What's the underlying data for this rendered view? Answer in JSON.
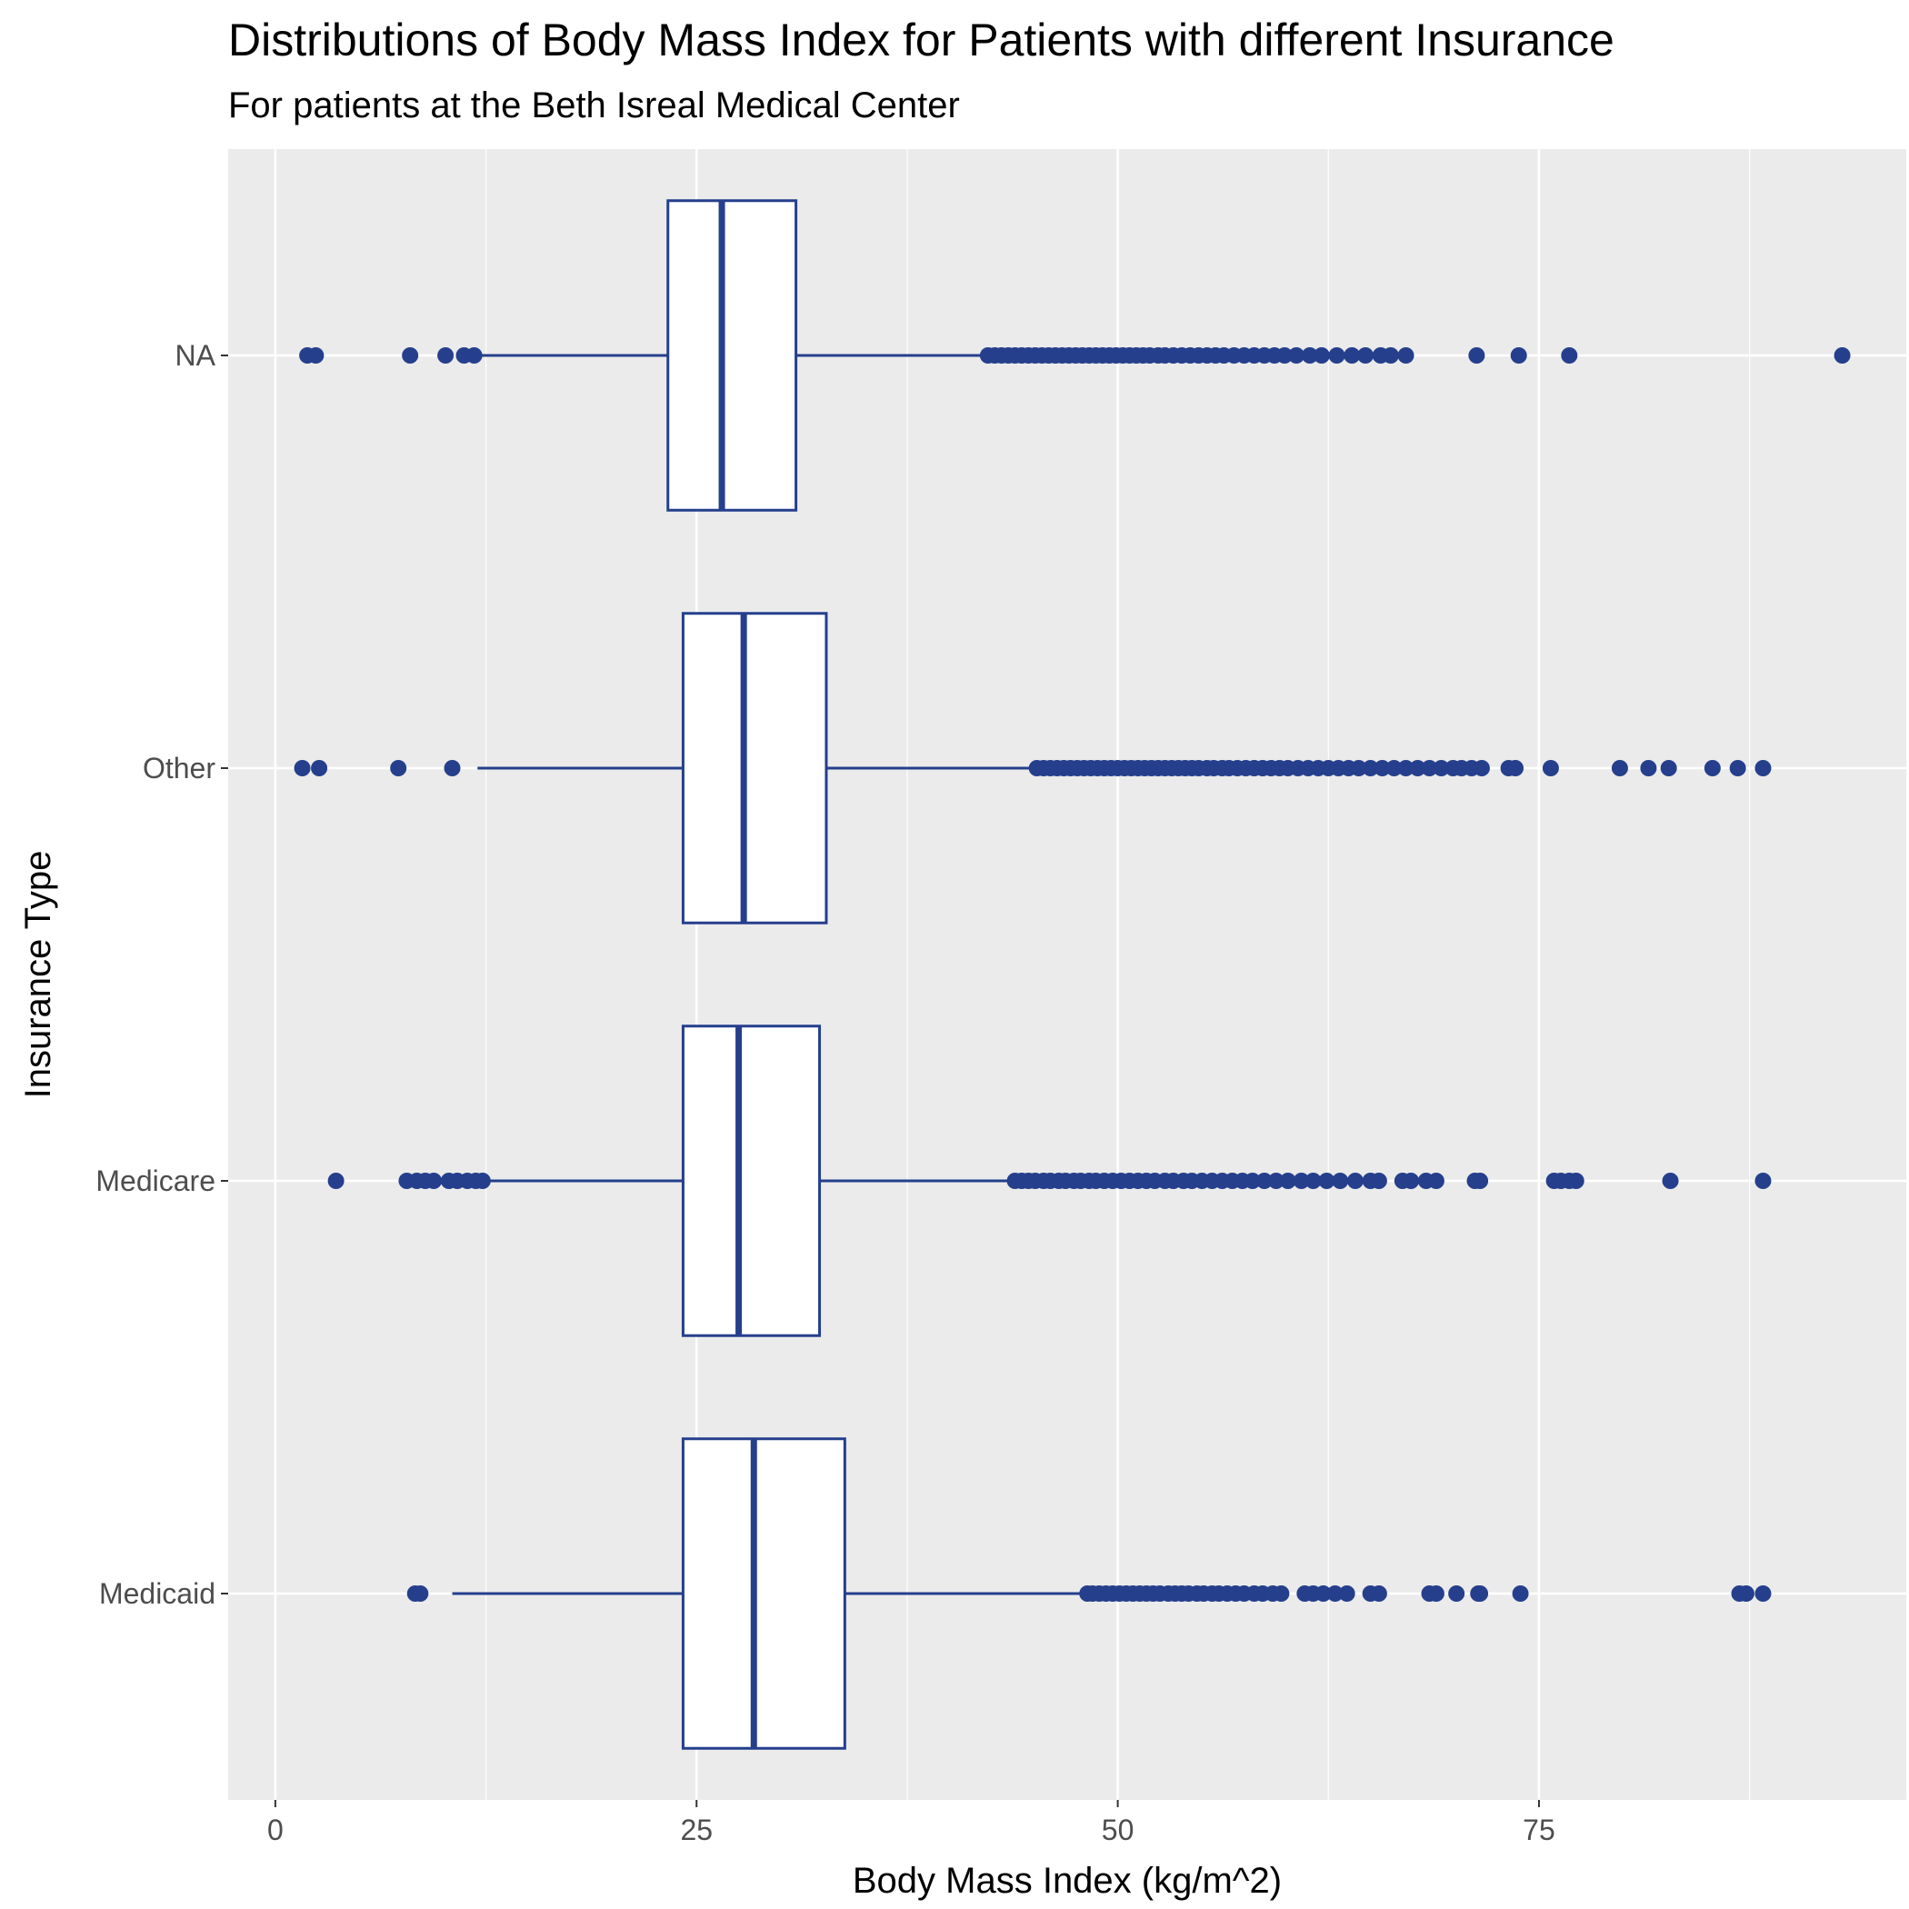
{
  "chart_data": {
    "type": "boxplot",
    "orientation": "horizontal",
    "title": "Distributions of Body Mass Index for Patients with different Insurance",
    "subtitle": "For patients at the Beth Isreal Medical Center",
    "xlabel": "Body Mass Index (kg/m^2)",
    "ylabel": "Insurance Type",
    "xlim": [
      -2.8,
      96.8
    ],
    "xticks": [
      0,
      25,
      50,
      75
    ],
    "grid": true,
    "colors": {
      "panel_background": "#ebebeb",
      "grid": "#ffffff",
      "box_stroke": "#253f8c",
      "box_fill": "#ffffff",
      "outlier": "#253f8c"
    },
    "categories": [
      "Medicaid",
      "Medicare",
      "Other",
      "NA"
    ],
    "series": [
      {
        "category": "Medicaid",
        "whisker_low": 10.5,
        "q1": 24.2,
        "median": 28.4,
        "q3": 33.8,
        "whisker_high": 48.0,
        "outliers": [
          8.3,
          8.6,
          48.2,
          48.5,
          48.9,
          49.3,
          49.7,
          50.1,
          50.5,
          50.9,
          51.3,
          51.7,
          52.1,
          52.5,
          53.0,
          53.4,
          53.8,
          54.2,
          54.7,
          55.1,
          55.6,
          56.0,
          56.5,
          57.0,
          57.5,
          58.1,
          58.6,
          59.2,
          59.7,
          61.1,
          61.6,
          62.2,
          62.9,
          63.6,
          65.0,
          65.5,
          68.5,
          68.9,
          70.1,
          71.4,
          71.5,
          73.9,
          86.9,
          87.3,
          88.3
        ]
      },
      {
        "category": "Medicare",
        "whisker_low": 12.5,
        "q1": 24.2,
        "median": 27.5,
        "q3": 32.3,
        "whisker_high": 43.7,
        "outliers": [
          3.6,
          7.8,
          8.4,
          8.9,
          9.4,
          10.3,
          10.8,
          11.4,
          11.9,
          12.3,
          43.9,
          44.3,
          44.7,
          45.1,
          45.6,
          46.0,
          46.5,
          46.9,
          47.4,
          47.8,
          48.3,
          48.7,
          49.2,
          49.7,
          50.2,
          50.7,
          51.2,
          51.7,
          52.2,
          52.8,
          53.3,
          53.9,
          54.4,
          55.0,
          55.6,
          56.2,
          56.8,
          57.4,
          58.0,
          58.7,
          59.4,
          60.1,
          60.9,
          61.6,
          62.4,
          63.2,
          64.1,
          65.0,
          65.5,
          66.9,
          67.4,
          68.3,
          68.9,
          71.2,
          71.5,
          75.9,
          76.3,
          76.8,
          77.2,
          82.8,
          88.3
        ]
      },
      {
        "category": "Other",
        "whisker_low": 12.0,
        "q1": 24.2,
        "median": 27.8,
        "q3": 32.7,
        "whisker_high": 45.0,
        "outliers": [
          1.6,
          2.6,
          7.3,
          10.5,
          45.2,
          45.6,
          46.0,
          46.4,
          46.8,
          47.2,
          47.6,
          48.0,
          48.4,
          48.8,
          49.2,
          49.6,
          50.0,
          50.4,
          50.8,
          51.2,
          51.6,
          52.0,
          52.4,
          52.8,
          53.2,
          53.6,
          54.0,
          54.4,
          54.8,
          55.3,
          55.7,
          56.2,
          56.6,
          57.1,
          57.6,
          58.1,
          58.6,
          59.1,
          59.6,
          60.1,
          60.7,
          61.3,
          61.9,
          62.5,
          63.1,
          63.7,
          64.3,
          65.0,
          65.7,
          66.4,
          67.1,
          67.8,
          68.5,
          69.2,
          69.9,
          70.4,
          71.0,
          71.6,
          73.2,
          73.6,
          75.7,
          79.8,
          81.5,
          82.7,
          85.3,
          86.8,
          88.3
        ]
      },
      {
        "category": "NA",
        "whisker_low": 12.0,
        "q1": 23.3,
        "median": 26.5,
        "q3": 30.9,
        "whisker_high": 42.0,
        "outliers": [
          1.9,
          2.4,
          8.0,
          10.1,
          11.2,
          11.8,
          42.3,
          42.7,
          43.1,
          43.5,
          43.9,
          44.3,
          44.7,
          45.1,
          45.5,
          45.9,
          46.3,
          46.7,
          47.1,
          47.5,
          47.9,
          48.3,
          48.7,
          49.1,
          49.5,
          49.9,
          50.3,
          50.7,
          51.1,
          51.5,
          51.9,
          52.4,
          52.8,
          53.3,
          53.8,
          54.3,
          54.8,
          55.3,
          55.8,
          56.3,
          56.9,
          57.5,
          58.1,
          58.7,
          59.3,
          59.9,
          60.6,
          61.4,
          62.1,
          63.0,
          63.9,
          64.7,
          65.6,
          66.2,
          67.1,
          71.3,
          73.8,
          76.8,
          93.0
        ]
      }
    ]
  }
}
